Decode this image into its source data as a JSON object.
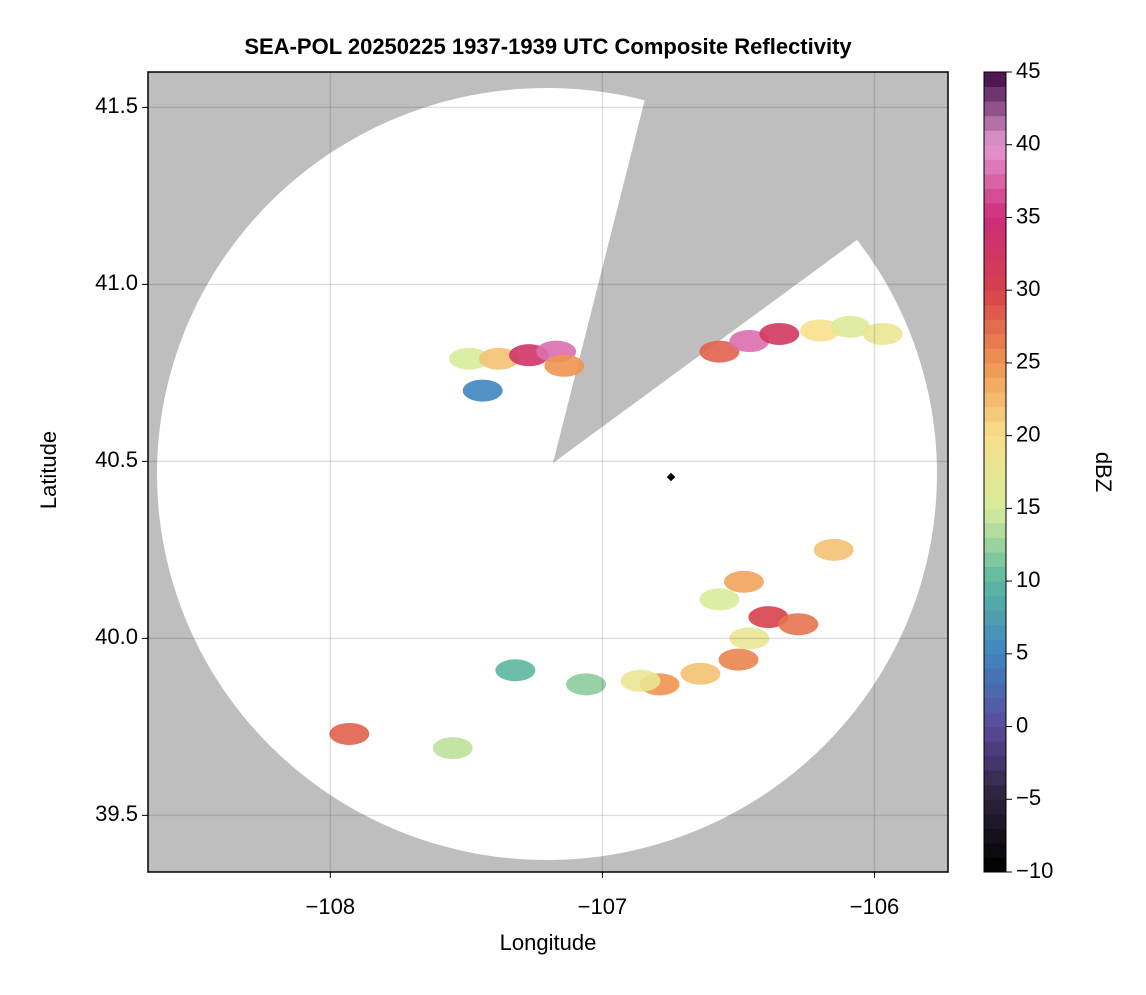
{
  "chart_data": {
    "type": "map",
    "title": "SEA-POL 20250225 1937-1939 UTC Composite Reflectivity",
    "x_label": "Longitude",
    "y_label": "Latitude",
    "colorbar_label": "dBZ",
    "x": [
      -107.49,
      -107.38,
      -107.27,
      -107.17,
      -107.14,
      -107.44,
      -106.57,
      -106.46,
      -106.35,
      -106.2,
      -106.09,
      -105.97,
      -106.15,
      -106.48,
      -106.39,
      -106.28,
      -106.46,
      -106.57,
      -106.5,
      -106.64,
      -106.79,
      -106.86,
      -107.06,
      -107.32,
      -107.93,
      -107.55
    ],
    "y": [
      40.79,
      40.79,
      40.8,
      40.81,
      40.77,
      40.7,
      40.81,
      40.84,
      40.86,
      40.87,
      40.88,
      40.86,
      40.25,
      40.16,
      40.06,
      40.04,
      40.0,
      40.11,
      39.94,
      39.9,
      39.87,
      39.88,
      39.87,
      39.91,
      39.73,
      39.69
    ],
    "values": [
      15,
      22,
      33,
      38,
      25,
      5,
      28,
      38,
      32,
      20,
      16,
      18,
      22,
      24,
      30,
      27,
      18,
      15,
      26,
      22,
      25,
      18,
      12,
      10,
      28,
      14
    ],
    "xlim": [
      -108.67,
      -105.73
    ],
    "ylim": [
      39.34,
      41.6
    ],
    "xticks": [
      {
        "value": -108,
        "label": "−108"
      },
      {
        "value": -107,
        "label": "−107"
      },
      {
        "value": -106,
        "label": "−106"
      }
    ],
    "yticks": [
      39.5,
      {
        "value": 40.0,
        "label": "40.0"
      },
      40.5,
      {
        "value": 41.0,
        "label": "41.0"
      },
      41.5
    ],
    "clim": [
      -10,
      45
    ],
    "cticks": [
      {
        "value": -10,
        "label": "−10"
      },
      {
        "value": -5,
        "label": "−5"
      },
      0,
      5,
      10,
      15,
      20,
      25,
      30,
      35,
      40,
      45
    ],
    "colors": [
      "#000000",
      "#2a2238",
      "#5b4a9b",
      "#3f85c0",
      "#5cb7a0",
      "#d6ec9a",
      "#f8e08c",
      "#ef9550",
      "#d6404b",
      "#cc2c7a",
      "#e59ad0",
      "#3d0a45"
    ],
    "grid": true
  }
}
